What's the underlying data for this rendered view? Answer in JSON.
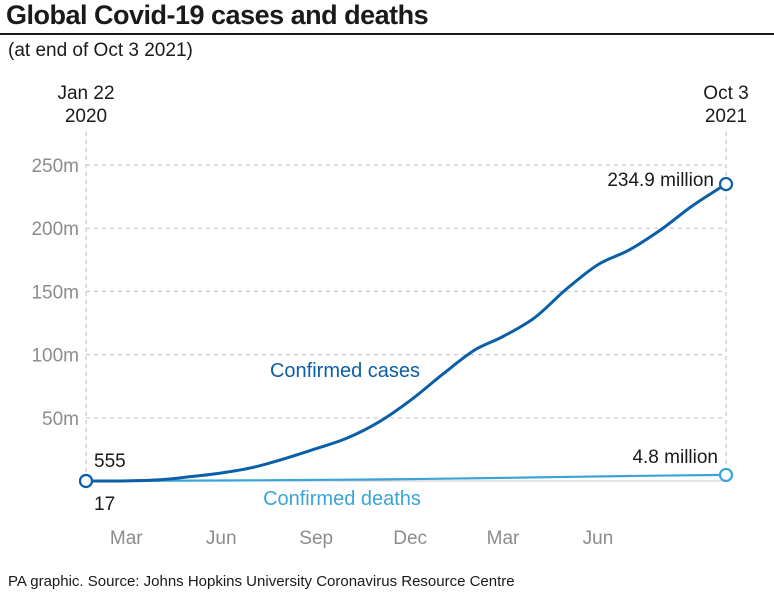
{
  "title": "Global Covid-19 cases and deaths",
  "subtitle": "(at end of Oct 3 2021)",
  "footer": "PA graphic. Source: Johns Hopkins University Coronavirus Resource Centre",
  "colors": {
    "cases": "#0b5ea8",
    "deaths": "#3aa4d8",
    "grid": "#c8c8c8",
    "text": "#1a1a1a",
    "tick": "#8c8c8c"
  },
  "chart_data": {
    "type": "line",
    "title": "Global Covid-19 cases and deaths",
    "xlabel": "",
    "ylabel": "",
    "x_range": [
      "2020-01-22",
      "2021-10-03"
    ],
    "ylim": [
      0,
      250
    ],
    "y_unit": "million",
    "grid": true,
    "corner_labels": {
      "start": [
        "Jan 22",
        "2020"
      ],
      "end": [
        "Oct 3",
        "2021"
      ]
    },
    "y_ticks": [
      {
        "value": 50,
        "label": "50m"
      },
      {
        "value": 100,
        "label": "100m"
      },
      {
        "value": 150,
        "label": "150m"
      },
      {
        "value": 200,
        "label": "200m"
      },
      {
        "value": 250,
        "label": "250m"
      }
    ],
    "x_ticks": [
      {
        "date": "2020-03-01",
        "label": "Mar"
      },
      {
        "date": "2020-06-01",
        "label": "Jun"
      },
      {
        "date": "2020-09-01",
        "label": "Sep"
      },
      {
        "date": "2020-12-01",
        "label": "Dec"
      },
      {
        "date": "2021-03-01",
        "label": "Mar"
      },
      {
        "date": "2021-06-01",
        "label": "Jun"
      }
    ],
    "series": [
      {
        "name": "Confirmed cases",
        "key": "cases",
        "start_label": "555",
        "end_label": "234.9 million",
        "points": [
          [
            "2020-01-22",
            0.000555
          ],
          [
            "2020-03-01",
            0.09
          ],
          [
            "2020-04-01",
            0.9
          ],
          [
            "2020-05-01",
            3.3
          ],
          [
            "2020-06-01",
            6.3
          ],
          [
            "2020-07-01",
            10.6
          ],
          [
            "2020-08-01",
            17.6
          ],
          [
            "2020-09-01",
            25.6
          ],
          [
            "2020-10-01",
            34.0
          ],
          [
            "2020-11-01",
            46.8
          ],
          [
            "2020-12-01",
            63.6
          ],
          [
            "2021-01-01",
            84.1
          ],
          [
            "2021-02-01",
            103.3
          ],
          [
            "2021-03-01",
            114.3
          ],
          [
            "2021-04-01",
            129.4
          ],
          [
            "2021-05-01",
            151.6
          ],
          [
            "2021-06-01",
            171.2
          ],
          [
            "2021-07-01",
            182.7
          ],
          [
            "2021-08-01",
            198.9
          ],
          [
            "2021-09-01",
            218.0
          ],
          [
            "2021-10-03",
            234.9
          ]
        ]
      },
      {
        "name": "Confirmed deaths",
        "key": "deaths",
        "start_label": "17",
        "end_label": "4.8 million",
        "points": [
          [
            "2020-01-22",
            1.7e-05
          ],
          [
            "2020-06-01",
            0.37
          ],
          [
            "2020-10-01",
            1.0
          ],
          [
            "2021-01-01",
            1.8
          ],
          [
            "2021-04-01",
            2.85
          ],
          [
            "2021-07-01",
            3.95
          ],
          [
            "2021-10-03",
            4.8
          ]
        ]
      }
    ]
  }
}
